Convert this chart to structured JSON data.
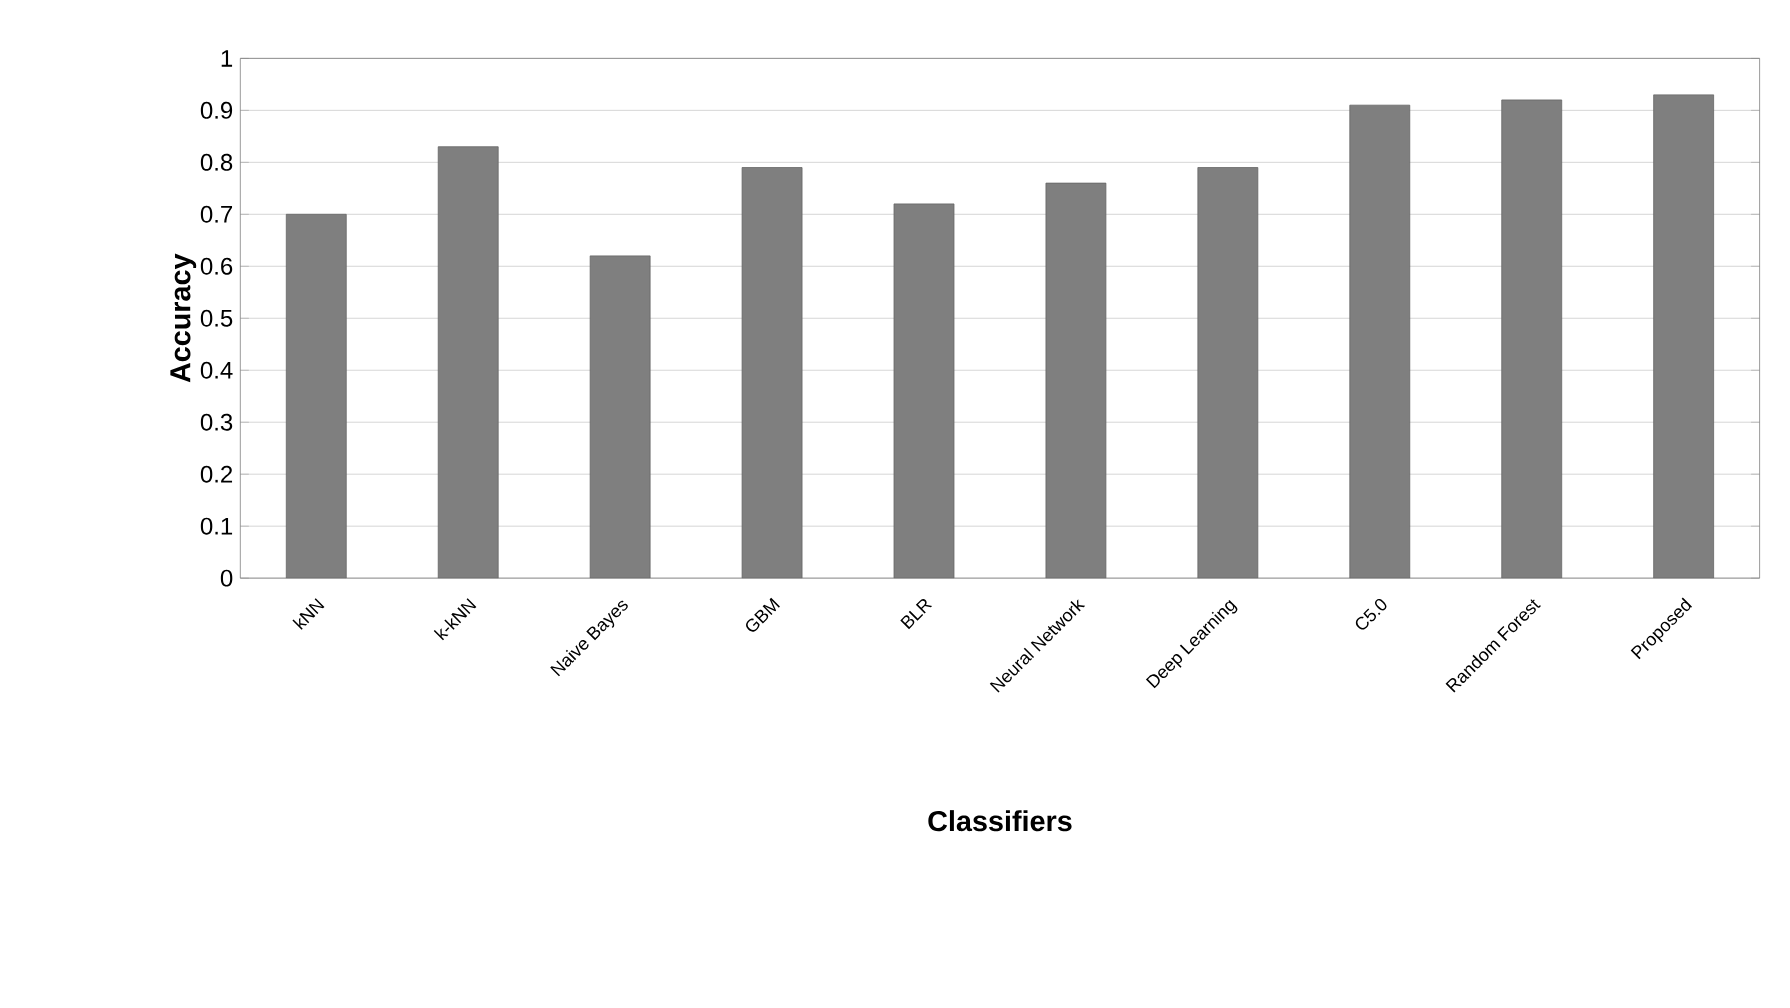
{
  "chart_data": {
    "type": "bar",
    "xlabel": "Classifiers",
    "ylabel": "Accuracy",
    "categories": [
      "kNN",
      "k-kNN",
      "Naive Bayes",
      "GBM",
      "BLR",
      "Neural Network",
      "Deep Learning",
      "C5.0",
      "Random Forest",
      "Proposed"
    ],
    "values": [
      0.7,
      0.83,
      0.62,
      0.79,
      0.72,
      0.76,
      0.79,
      0.91,
      0.92,
      0.93
    ],
    "color": "#7f7f7f",
    "ylim": [
      0,
      1
    ],
    "yticks": [
      0,
      0.1,
      0.2,
      0.3,
      0.4,
      0.5,
      0.6,
      0.7,
      0.8,
      0.9,
      1
    ],
    "grid": "y"
  }
}
